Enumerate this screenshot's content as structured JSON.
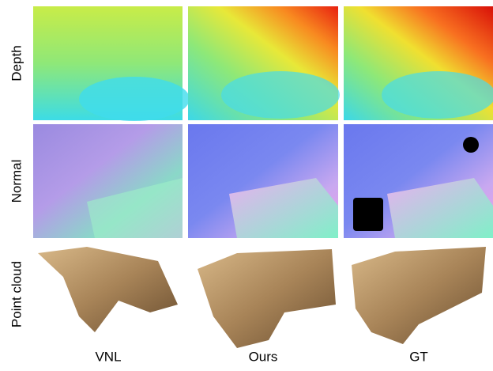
{
  "row_labels": [
    "Depth",
    "Normal",
    "Point cloud"
  ],
  "column_labels": [
    "VNL",
    "Ours",
    "GT"
  ]
}
